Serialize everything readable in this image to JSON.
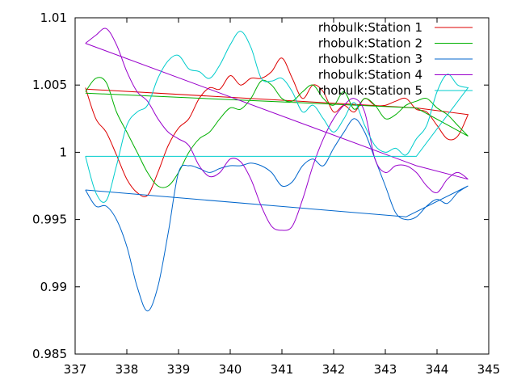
{
  "chart_data": {
    "type": "line",
    "title": "",
    "xlabel": "",
    "ylabel": "",
    "xlim": [
      337,
      345
    ],
    "ylim": [
      0.985,
      1.01
    ],
    "grid": false,
    "legend_position": "top-right",
    "xticks": [
      337,
      338,
      339,
      340,
      341,
      342,
      343,
      344,
      345
    ],
    "xtick_labels": [
      "337",
      "338",
      "339",
      "340",
      "341",
      "342",
      "343",
      "344",
      "345"
    ],
    "yticks": [
      0.985,
      0.99,
      0.995,
      1.0,
      1.005,
      1.01
    ],
    "ytick_labels": [
      "0.985",
      "0.99",
      "0.995",
      "1",
      "1.005",
      "1.01"
    ],
    "series": [
      {
        "name": "rhobulk:Station 1",
        "color": "#dd0000",
        "x": [
          337.2,
          337.4,
          337.6,
          337.8,
          338.0,
          338.2,
          338.4,
          338.6,
          338.8,
          339.0,
          339.2,
          339.4,
          339.6,
          339.8,
          340.0,
          340.2,
          340.4,
          340.6,
          340.8,
          341.0,
          341.2,
          341.4,
          341.6,
          341.8,
          342.0,
          342.2,
          342.4,
          342.6,
          342.8,
          343.0,
          343.2,
          343.4,
          343.6,
          343.8,
          344.0,
          344.2,
          344.4,
          344.6,
          343.6,
          337.2
        ],
        "y": [
          1.0048,
          1.0025,
          1.0015,
          0.9998,
          0.998,
          0.997,
          0.9968,
          0.9985,
          1.0005,
          1.0018,
          1.0025,
          1.004,
          1.0048,
          1.0047,
          1.0057,
          1.005,
          1.0055,
          1.0055,
          1.006,
          1.007,
          1.0055,
          1.004,
          1.005,
          1.0045,
          1.003,
          1.0035,
          1.003,
          1.004,
          1.0035,
          1.0035,
          1.0038,
          1.004,
          1.0032,
          1.003,
          1.002,
          1.001,
          1.0012,
          1.0028,
          1.0033,
          1.0047
        ]
      },
      {
        "name": "rhobulk:Station 2",
        "color": "#00b000",
        "x": [
          337.2,
          337.4,
          337.6,
          337.8,
          338.0,
          338.2,
          338.4,
          338.6,
          338.8,
          339.0,
          339.2,
          339.4,
          339.6,
          339.8,
          340.0,
          340.2,
          340.4,
          340.6,
          340.8,
          341.0,
          341.2,
          341.4,
          341.6,
          341.8,
          342.0,
          342.2,
          342.4,
          342.6,
          342.8,
          343.0,
          343.2,
          343.4,
          343.6,
          343.8,
          344.0,
          344.2,
          344.4,
          344.6,
          343.6,
          337.2
        ],
        "y": [
          1.0045,
          1.0055,
          1.0052,
          1.003,
          1.0015,
          1.0,
          0.9985,
          0.9975,
          0.9975,
          0.9985,
          1.0,
          1.001,
          1.0015,
          1.0025,
          1.0033,
          1.0032,
          1.004,
          1.0053,
          1.005,
          1.004,
          1.0038,
          1.0045,
          1.005,
          1.004,
          1.0035,
          1.0045,
          1.0032,
          1.004,
          1.0035,
          1.0025,
          1.0028,
          1.0035,
          1.0038,
          1.004,
          1.0033,
          1.0028,
          1.002,
          1.0012,
          1.0033,
          1.0044
        ]
      },
      {
        "name": "rhobulk:Station 3",
        "color": "#0066cc",
        "x": [
          337.2,
          337.4,
          337.6,
          337.8,
          338.0,
          338.2,
          338.4,
          338.6,
          338.8,
          339.0,
          339.2,
          339.4,
          339.6,
          339.8,
          340.0,
          340.2,
          340.4,
          340.6,
          340.8,
          341.0,
          341.2,
          341.4,
          341.6,
          341.8,
          342.0,
          342.2,
          342.4,
          342.6,
          342.8,
          343.0,
          343.2,
          343.4,
          343.6,
          343.8,
          344.0,
          344.2,
          344.4,
          344.6,
          343.4,
          337.2
        ],
        "y": [
          0.9972,
          0.996,
          0.996,
          0.995,
          0.993,
          0.99,
          0.9882,
          0.99,
          0.994,
          0.9985,
          0.999,
          0.9988,
          0.9985,
          0.9988,
          0.999,
          0.999,
          0.9992,
          0.999,
          0.9985,
          0.9975,
          0.9978,
          0.999,
          0.9995,
          0.999,
          1.0003,
          1.0015,
          1.0025,
          1.0015,
          0.9995,
          0.9975,
          0.9955,
          0.995,
          0.9952,
          0.996,
          0.9965,
          0.9962,
          0.997,
          0.9975,
          0.9952,
          0.9972
        ]
      },
      {
        "name": "rhobulk:Station 4",
        "color": "#9900cc",
        "x": [
          337.2,
          337.4,
          337.6,
          337.8,
          338.0,
          338.2,
          338.4,
          338.6,
          338.8,
          339.0,
          339.2,
          339.4,
          339.6,
          339.8,
          340.0,
          340.2,
          340.4,
          340.6,
          340.8,
          341.0,
          341.2,
          341.4,
          341.6,
          341.8,
          342.0,
          342.2,
          342.4,
          342.6,
          342.8,
          343.0,
          343.2,
          343.4,
          343.6,
          343.8,
          344.0,
          344.2,
          344.4,
          344.6,
          343.6,
          337.2
        ],
        "y": [
          1.0081,
          1.0087,
          1.0092,
          1.008,
          1.006,
          1.0045,
          1.0038,
          1.0025,
          1.0015,
          1.001,
          1.0005,
          0.999,
          0.9982,
          0.9985,
          0.9995,
          0.9993,
          0.998,
          0.996,
          0.9945,
          0.9942,
          0.9945,
          0.9965,
          0.999,
          1.001,
          1.0025,
          1.0035,
          1.004,
          1.003,
          0.9995,
          0.9985,
          0.999,
          0.999,
          0.9985,
          0.9975,
          0.997,
          0.998,
          0.9985,
          0.998,
          0.999,
          1.0081
        ]
      },
      {
        "name": "rhobulk:Station 5",
        "color": "#00cccc",
        "x": [
          337.2,
          337.4,
          337.6,
          337.8,
          338.0,
          338.2,
          338.4,
          338.6,
          338.8,
          339.0,
          339.2,
          339.4,
          339.6,
          339.8,
          340.0,
          340.2,
          340.4,
          340.6,
          340.8,
          341.0,
          341.2,
          341.4,
          341.6,
          341.8,
          342.0,
          342.2,
          342.4,
          342.6,
          342.8,
          343.0,
          343.2,
          343.4,
          343.6,
          343.8,
          344.0,
          344.2,
          344.4,
          344.6,
          343.6,
          337.2
        ],
        "y": [
          0.9997,
          0.997,
          0.9964,
          0.999,
          1.002,
          1.003,
          1.0035,
          1.0055,
          1.0068,
          1.0072,
          1.0062,
          1.006,
          1.0055,
          1.0065,
          1.008,
          1.009,
          1.0078,
          1.0055,
          1.0053,
          1.0055,
          1.0045,
          1.003,
          1.0035,
          1.0025,
          1.0015,
          1.0025,
          1.0037,
          1.002,
          1.0005,
          1.0,
          1.0003,
          0.9998,
          1.001,
          1.002,
          1.0045,
          1.0058,
          1.005,
          1.0048,
          0.9997,
          0.9997
        ]
      }
    ]
  }
}
